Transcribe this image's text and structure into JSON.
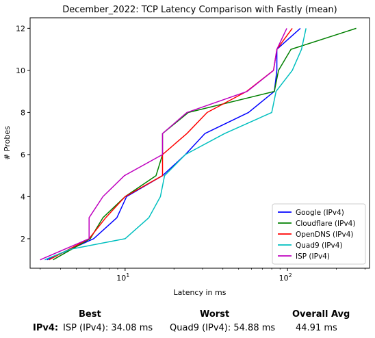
{
  "chart_data": {
    "type": "line",
    "title": "December_2022: TCP Latency Comparison with Fastly (mean)",
    "xlabel": "Latency in ms",
    "ylabel": "# Probes",
    "xscale": "log",
    "xlim": [
      2.6,
      320
    ],
    "ylim": [
      0.6,
      12.5
    ],
    "xticks": [
      10,
      100
    ],
    "xtick_labels": [
      "10^1",
      "10^2"
    ],
    "yticks": [
      2,
      4,
      6,
      8,
      10,
      12
    ],
    "grid": false,
    "legend_position": "lower-right",
    "series": [
      {
        "name": "Google (IPv4)",
        "color": "#0000ff",
        "points": [
          [
            3.3,
            1
          ],
          [
            6.4,
            2
          ],
          [
            8.9,
            3
          ],
          [
            10.2,
            4
          ],
          [
            17.0,
            5
          ],
          [
            23.5,
            6
          ],
          [
            31.0,
            7
          ],
          [
            57.5,
            8
          ],
          [
            83.0,
            9
          ],
          [
            86.0,
            10
          ],
          [
            86.0,
            11
          ],
          [
            120.0,
            12
          ]
        ]
      },
      {
        "name": "Cloudflare (IPv4)",
        "color": "#008000",
        "points": [
          [
            3.6,
            1
          ],
          [
            6.1,
            2
          ],
          [
            7.3,
            3
          ],
          [
            10.0,
            4
          ],
          [
            15.5,
            5
          ],
          [
            17.0,
            6
          ],
          [
            17.0,
            7
          ],
          [
            24.5,
            8
          ],
          [
            83.0,
            9
          ],
          [
            88.0,
            10
          ],
          [
            105.0,
            11
          ],
          [
            265.0,
            12
          ]
        ]
      },
      {
        "name": "OpenDNS (IPv4)",
        "color": "#ff0000",
        "points": [
          [
            3.4,
            1
          ],
          [
            6.0,
            2
          ],
          [
            7.6,
            3
          ],
          [
            10.0,
            4
          ],
          [
            17.0,
            5
          ],
          [
            17.0,
            6
          ],
          [
            24.0,
            7
          ],
          [
            32.0,
            8
          ],
          [
            56.0,
            9
          ],
          [
            82.0,
            10
          ],
          [
            86.0,
            11
          ],
          [
            107.0,
            12
          ]
        ]
      },
      {
        "name": "Quad9 (IPv4)",
        "color": "#00bfbf",
        "points": [
          [
            3.2,
            1
          ],
          [
            4.6,
            1.5
          ],
          [
            10.0,
            2
          ],
          [
            14.0,
            3
          ],
          [
            16.5,
            4
          ],
          [
            17.5,
            5
          ],
          [
            23.5,
            6
          ],
          [
            41.0,
            7
          ],
          [
            80.0,
            8
          ],
          [
            85.0,
            9
          ],
          [
            107.0,
            10
          ],
          [
            122.0,
            11
          ],
          [
            130.0,
            12
          ]
        ]
      },
      {
        "name": "ISP (IPv4)",
        "color": "#bf00bf",
        "points": [
          [
            3.0,
            1
          ],
          [
            6.0,
            2
          ],
          [
            6.0,
            3
          ],
          [
            7.3,
            4
          ],
          [
            9.9,
            5
          ],
          [
            17.0,
            6
          ],
          [
            17.0,
            7
          ],
          [
            24.0,
            8
          ],
          [
            56.5,
            9
          ],
          [
            82.0,
            10
          ],
          [
            86.0,
            11
          ],
          [
            99.0,
            12
          ]
        ]
      }
    ]
  },
  "summary": {
    "best_label": "Best",
    "worst_label": "Worst",
    "avg_label": "Overall Avg",
    "row_label": "IPv4:",
    "best_value": "ISP (IPv4): 34.08 ms",
    "worst_value": "Quad9 (IPv4): 54.88 ms",
    "avg_value": "44.91 ms"
  }
}
